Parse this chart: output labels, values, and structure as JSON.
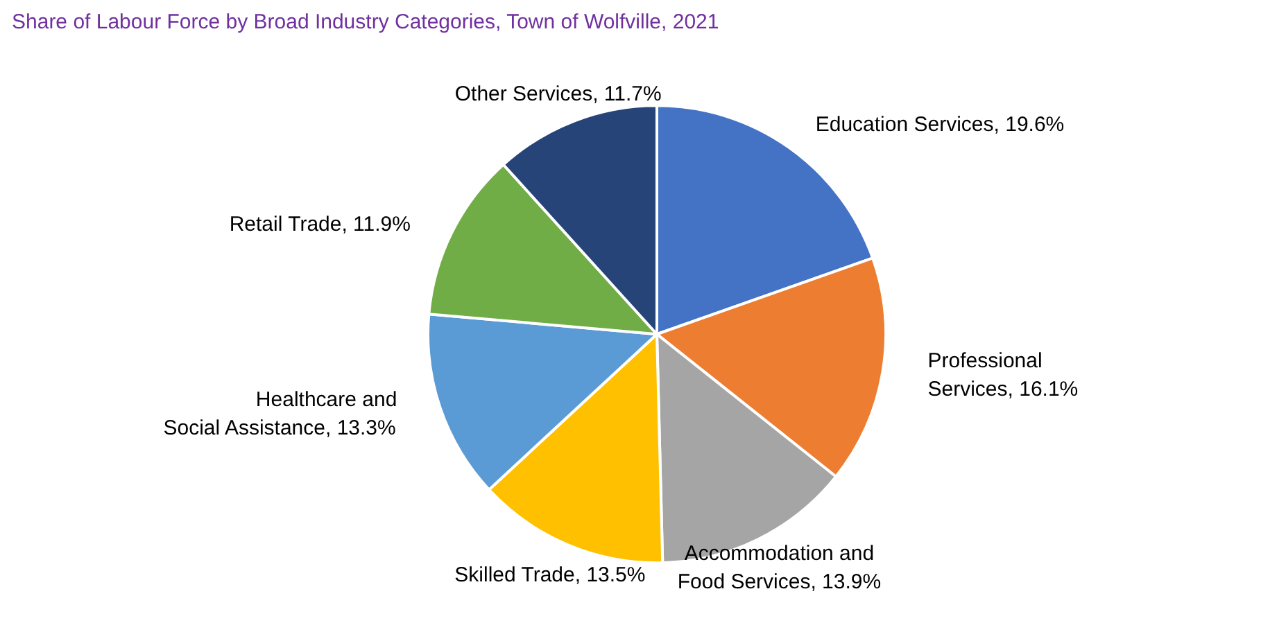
{
  "chart_data": {
    "type": "pie",
    "title": "Share of Labour Force by Broad Industry Categories, Town of Wolfville, 2021",
    "categories": [
      "Education Services",
      "Professional Services",
      "Accommodation and Food Services",
      "Skilled Trade",
      "Healthcare and Social Assistance",
      "Retail Trade",
      "Other Services"
    ],
    "values": [
      19.6,
      16.1,
      13.9,
      13.5,
      13.3,
      11.9,
      11.7
    ],
    "value_labels": [
      "19.6%",
      "16.1%",
      "13.9%",
      "13.5%",
      "13.3%",
      "11.9%",
      "11.7%"
    ],
    "colors": [
      "#4472c4",
      "#ed7d31",
      "#a5a5a5",
      "#ffc000",
      "#5b9bd5",
      "#70ad47",
      "#264478"
    ],
    "legend": false
  }
}
